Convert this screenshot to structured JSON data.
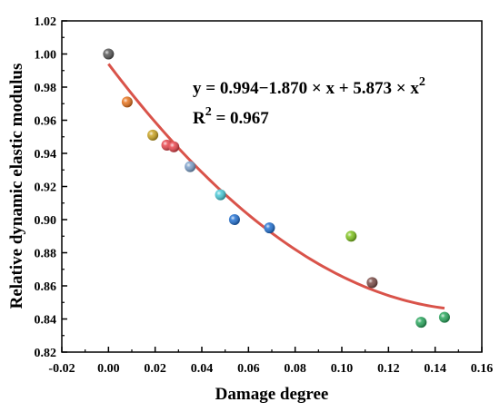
{
  "chart_data": {
    "type": "scatter",
    "xlabel": "Damage degree",
    "ylabel": "Relative dynamic elastic modulus",
    "xlim": [
      -0.02,
      0.16
    ],
    "ylim": [
      0.82,
      1.02
    ],
    "xticks": [
      "-0.02",
      "0.00",
      "0.02",
      "0.04",
      "0.06",
      "0.08",
      "0.10",
      "0.12",
      "0.14",
      "0.16"
    ],
    "yticks": [
      "0.82",
      "0.84",
      "0.86",
      "0.88",
      "0.90",
      "0.92",
      "0.94",
      "0.96",
      "0.98",
      "1.00",
      "1.02"
    ],
    "grid": false,
    "points": [
      {
        "x": 0.0,
        "y": 1.0,
        "color": "#555555"
      },
      {
        "x": 0.008,
        "y": 0.971,
        "color": "#e8731c"
      },
      {
        "x": 0.019,
        "y": 0.951,
        "color": "#c9a21e"
      },
      {
        "x": 0.025,
        "y": 0.945,
        "color": "#e8434b"
      },
      {
        "x": 0.028,
        "y": 0.944,
        "color": "#e8434b"
      },
      {
        "x": 0.035,
        "y": 0.932,
        "color": "#7b9fc9"
      },
      {
        "x": 0.048,
        "y": 0.915,
        "color": "#48c8d6"
      },
      {
        "x": 0.054,
        "y": 0.9,
        "color": "#1f6fd1"
      },
      {
        "x": 0.069,
        "y": 0.895,
        "color": "#1f6fd1"
      },
      {
        "x": 0.104,
        "y": 0.89,
        "color": "#7fc31c"
      },
      {
        "x": 0.113,
        "y": 0.862,
        "color": "#7a4a45"
      },
      {
        "x": 0.134,
        "y": 0.838,
        "color": "#26a65b"
      },
      {
        "x": 0.144,
        "y": 0.841,
        "color": "#26a65b"
      }
    ],
    "fit": {
      "color": "#d9534a",
      "x_range": [
        0.0,
        0.144
      ],
      "coefficients": [
        0.994,
        -1.87,
        5.873
      ]
    },
    "annotation": {
      "equation_main": "y = 0.994−1.870 × x + 5.873 × x",
      "equation_exp": "2",
      "r2_base": "R",
      "r2_exp": "2",
      "r2_value": " = 0.967"
    }
  }
}
